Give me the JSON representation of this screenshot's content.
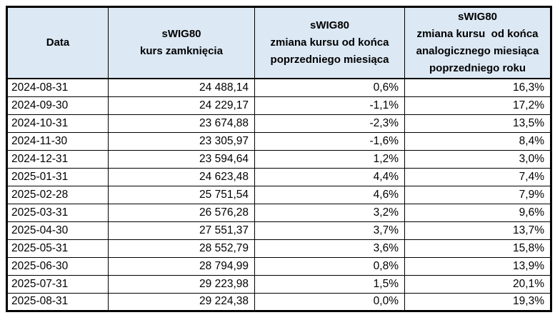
{
  "table": {
    "name": "sWIG80 monthly statistics",
    "header_bg": "#dce8f4",
    "border_color": "#000000",
    "columns": [
      {
        "id": "date",
        "label": "Data",
        "align": "left"
      },
      {
        "id": "close",
        "label": "sWIG80\nkurs zamknięcia",
        "align": "right"
      },
      {
        "id": "mom_change",
        "label": "sWIG80\nzmiana kursu od końca\npoprzedniego miesiąca",
        "align": "right"
      },
      {
        "id": "yoy_change",
        "label": "sWIG80\nzmiana kursu  od końca\nanalogicznego miesiąca\npoprzedniego roku",
        "align": "right"
      }
    ],
    "rows": [
      [
        "2024-08-31",
        "24 488,14",
        "0,6%",
        "16,3%"
      ],
      [
        "2024-09-30",
        "24 229,17",
        "-1,1%",
        "17,2%"
      ],
      [
        "2024-10-31",
        "23 674,88",
        "-2,3%",
        "13,5%"
      ],
      [
        "2024-11-30",
        "23 305,97",
        "-1,6%",
        "8,4%"
      ],
      [
        "2024-12-31",
        "23 594,64",
        "1,2%",
        "3,0%"
      ],
      [
        "2025-01-31",
        "24 623,48",
        "4,4%",
        "7,4%"
      ],
      [
        "2025-02-28",
        "25 751,54",
        "4,6%",
        "7,9%"
      ],
      [
        "2025-03-31",
        "26 576,28",
        "3,2%",
        "9,6%"
      ],
      [
        "2025-04-30",
        "27 551,37",
        "3,7%",
        "13,7%"
      ],
      [
        "2025-05-31",
        "28 552,79",
        "3,6%",
        "15,8%"
      ],
      [
        "2025-06-30",
        "28 794,99",
        "0,8%",
        "13,9%"
      ],
      [
        "2025-07-31",
        "29 223,98",
        "1,5%",
        "20,1%"
      ],
      [
        "2025-08-31",
        "29 224,38",
        "0,0%",
        "19,3%"
      ]
    ]
  }
}
